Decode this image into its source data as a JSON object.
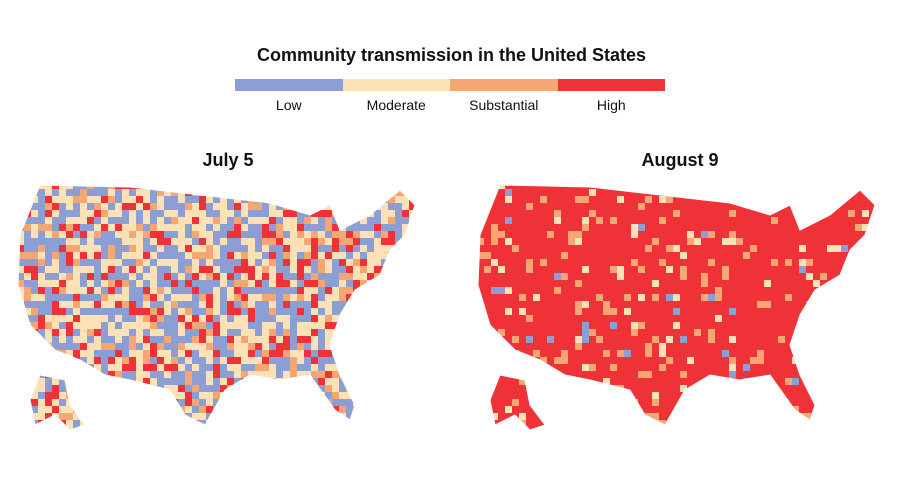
{
  "title": "Community transmission in the United States",
  "legend": [
    {
      "label": "Low",
      "color": "#8B9FD4"
    },
    {
      "label": "Moderate",
      "color": "#FBE1B5"
    },
    {
      "label": "Substantial",
      "color": "#F4A772"
    },
    {
      "label": "High",
      "color": "#EE3238"
    }
  ],
  "maps": [
    {
      "title": "July 5",
      "mix": {
        "Low": 0.32,
        "Moderate": 0.38,
        "Substantial": 0.12,
        "High": 0.18
      }
    },
    {
      "title": "August 9",
      "mix": {
        "Low": 0.02,
        "Moderate": 0.04,
        "Substantial": 0.08,
        "High": 0.86
      }
    }
  ]
}
